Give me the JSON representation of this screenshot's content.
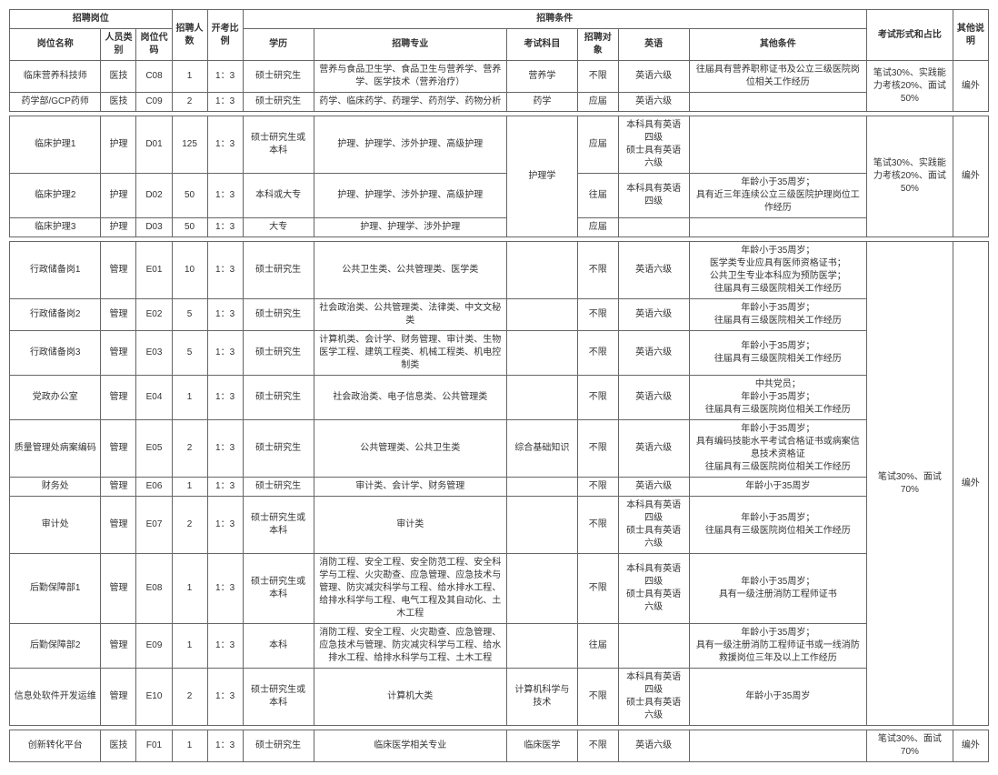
{
  "headers": {
    "post_group": "招聘岗位",
    "post_name": "岗位名称",
    "person_cat": "人员类别",
    "post_code": "岗位代码",
    "recruit_num": "招聘人数",
    "exam_ratio": "开考比例",
    "cond_group": "招聘条件",
    "edu": "学历",
    "major": "招聘专业",
    "subject": "考试科目",
    "target": "招聘对象",
    "english": "英语",
    "other_cond": "其他条件",
    "exam_form": "考试形式和占比",
    "other_note": "其他说明"
  },
  "section1": {
    "rows": [
      {
        "name": "临床营养科技师",
        "cat": "医技",
        "code": "C08",
        "num": "1",
        "ratio": "1：3",
        "edu": "硕士研究生",
        "major": "营养与食品卫生学、食品卫生与营养学、营养学、医学技术（营养治疗）",
        "subject": "营养学",
        "target": "不限",
        "eng": "英语六级",
        "other": "往届具有营养职称证书及公立三级医院岗位相关工作经历"
      },
      {
        "name": "药学部/GCP药师",
        "cat": "医技",
        "code": "C09",
        "num": "2",
        "ratio": "1：3",
        "edu": "硕士研究生",
        "major": "药学、临床药学、药理学、药剂学、药物分析",
        "subject": "药学",
        "target": "应届",
        "eng": "英语六级",
        "other": ""
      }
    ],
    "exam_form": "笔试30%、实践能力考核20%、面试50%",
    "note": "编外"
  },
  "section2": {
    "rows": [
      {
        "name": "临床护理1",
        "cat": "护理",
        "code": "D01",
        "num": "125",
        "ratio": "1：3",
        "edu": "硕士研究生或本科",
        "major": "护理、护理学、涉外护理、高级护理",
        "target": "应届",
        "eng": "本科具有英语四级\n硕士具有英语六级",
        "other": ""
      },
      {
        "name": "临床护理2",
        "cat": "护理",
        "code": "D02",
        "num": "50",
        "ratio": "1：3",
        "edu": "本科或大专",
        "major": "护理、护理学、涉外护理、高级护理",
        "target": "往届",
        "eng": "本科具有英语四级",
        "other": "年龄小于35周岁；\n具有近三年连续公立三级医院护理岗位工作经历"
      },
      {
        "name": "临床护理3",
        "cat": "护理",
        "code": "D03",
        "num": "50",
        "ratio": "1：3",
        "edu": "大专",
        "major": "护理、护理学、涉外护理",
        "target": "应届",
        "eng": "",
        "other": ""
      }
    ],
    "subject": "护理学",
    "exam_form": "笔试30%、实践能力考核20%、面试50%",
    "note": "编外"
  },
  "section3": {
    "rows": [
      {
        "name": "行政储备岗1",
        "cat": "管理",
        "code": "E01",
        "num": "10",
        "ratio": "1：3",
        "edu": "硕士研究生",
        "major": "公共卫生类、公共管理类、医学类",
        "subject": "",
        "target": "不限",
        "eng": "英语六级",
        "other": "年龄小于35周岁；\n医学类专业应具有医师资格证书；\n公共卫生专业本科应为预防医学；\n往届具有三级医院相关工作经历"
      },
      {
        "name": "行政储备岗2",
        "cat": "管理",
        "code": "E02",
        "num": "5",
        "ratio": "1：3",
        "edu": "硕士研究生",
        "major": "社会政治类、公共管理类、法律类、中文文秘类",
        "subject": "",
        "target": "不限",
        "eng": "英语六级",
        "other": "年龄小于35周岁；\n往届具有三级医院相关工作经历"
      },
      {
        "name": "行政储备岗3",
        "cat": "管理",
        "code": "E03",
        "num": "5",
        "ratio": "1：3",
        "edu": "硕士研究生",
        "major": "计算机类、会计学、财务管理、审计类、生物医学工程、建筑工程类、机械工程类、机电控制类",
        "subject": "",
        "target": "不限",
        "eng": "英语六级",
        "other": "年龄小于35周岁；\n往届具有三级医院相关工作经历"
      },
      {
        "name": "党政办公室",
        "cat": "管理",
        "code": "E04",
        "num": "1",
        "ratio": "1：3",
        "edu": "硕士研究生",
        "major": "社会政治类、电子信息类、公共管理类",
        "subject": "",
        "target": "不限",
        "eng": "英语六级",
        "other": "中共党员；\n年龄小于35周岁；\n往届具有三级医院岗位相关工作经历"
      },
      {
        "name": "质量管理处病案编码",
        "cat": "管理",
        "code": "E05",
        "num": "2",
        "ratio": "1：3",
        "edu": "硕士研究生",
        "major": "公共管理类、公共卫生类",
        "subject": "综合基础知识",
        "target": "不限",
        "eng": "英语六级",
        "other": "年龄小于35周岁；\n具有编码技能水平考试合格证书或病案信息技术资格证\n往届具有三级医院岗位相关工作经历"
      },
      {
        "name": "财务处",
        "cat": "管理",
        "code": "E06",
        "num": "1",
        "ratio": "1：3",
        "edu": "硕士研究生",
        "major": "审计类、会计学、财务管理",
        "subject": "",
        "target": "不限",
        "eng": "英语六级",
        "other": "年龄小于35周岁"
      },
      {
        "name": "审计处",
        "cat": "管理",
        "code": "E07",
        "num": "2",
        "ratio": "1：3",
        "edu": "硕士研究生或本科",
        "major": "审计类",
        "subject": "",
        "target": "不限",
        "eng": "本科具有英语四级\n硕士具有英语六级",
        "other": "年龄小于35周岁；\n往届具有三级医院岗位相关工作经历"
      },
      {
        "name": "后勤保障部1",
        "cat": "管理",
        "code": "E08",
        "num": "1",
        "ratio": "1：3",
        "edu": "硕士研究生或本科",
        "major": "消防工程、安全工程、安全防范工程、安全科学与工程、火灾勘查、应急管理、应急技术与管理、防灾减灾科学与工程、给水排水工程、给排水科学与工程、电气工程及其自动化、土木工程",
        "subject": "",
        "target": "不限",
        "eng": "本科具有英语四级\n硕士具有英语六级",
        "other": "年龄小于35周岁；\n具有一级注册消防工程师证书"
      },
      {
        "name": "后勤保障部2",
        "cat": "管理",
        "code": "E09",
        "num": "1",
        "ratio": "1：3",
        "edu": "本科",
        "major": "消防工程、安全工程、火灾勘查、应急管理、应急技术与管理、防灾减灾科学与工程、给水排水工程、给排水科学与工程、土木工程",
        "subject": "",
        "target": "往届",
        "eng": "",
        "other": "年龄小于35周岁；\n具有一级注册消防工程师证书或一线消防救援岗位三年及以上工作经历"
      },
      {
        "name": "信息处软件开发运维",
        "cat": "管理",
        "code": "E10",
        "num": "2",
        "ratio": "1：3",
        "edu": "硕士研究生或本科",
        "major": "计算机大类",
        "subject": "计算机科学与技术",
        "target": "不限",
        "eng": "本科具有英语四级\n硕士具有英语六级",
        "other": "年龄小于35周岁"
      }
    ],
    "exam_form": "笔试30%、面试70%",
    "note": "编外"
  },
  "section4": {
    "rows": [
      {
        "name": "创新转化平台",
        "cat": "医技",
        "code": "F01",
        "num": "1",
        "ratio": "1：3",
        "edu": "硕士研究生",
        "major": "临床医学相关专业",
        "subject": "临床医学",
        "target": "不限",
        "eng": "英语六级",
        "other": ""
      }
    ],
    "exam_form": "笔试30%、面试70%",
    "note": "编外"
  }
}
